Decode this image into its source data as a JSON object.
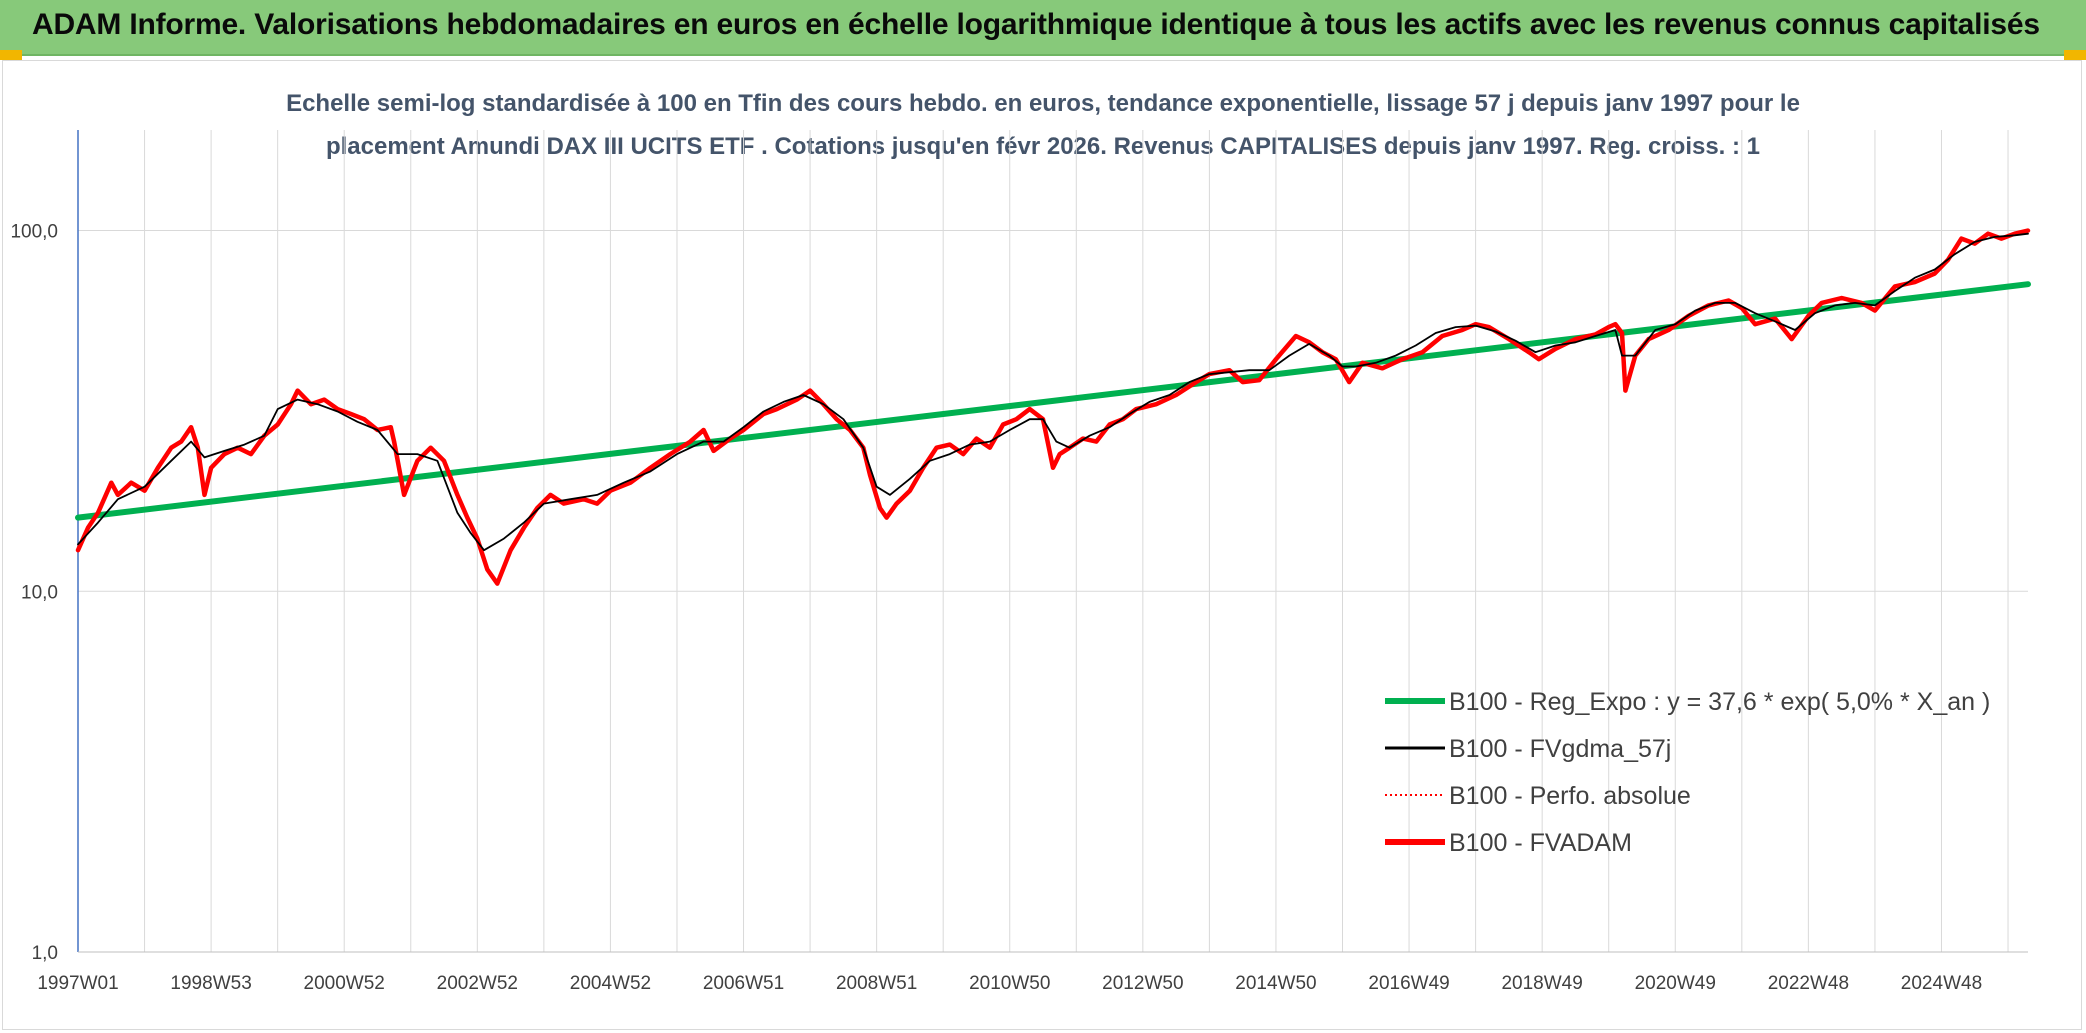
{
  "header": {
    "title": "ADAM Informe. Valorisations hebdomadaires en euros en échelle logarithmique identique à tous les actifs avec les revenus connus capitalisés",
    "background": "#87c97a"
  },
  "chart_data": {
    "type": "line",
    "title": "",
    "subtitle_lines": [
      "Echelle semi-log standardisée à 100 en Tfin des cours hebdo. en euros, tendance exponentielle, lissage 57 j depuis janv 1997 pour le",
      "placement Amundi DAX III UCITS ETF . Cotations jusqu'en févr 2026. Revenus CAPITALISES depuis janv 1997. Reg. croiss. : 1"
    ],
    "xlabel": "",
    "ylabel": "",
    "y_scale": "log",
    "ylim": [
      1,
      100
    ],
    "y_max_shown": 190,
    "x_range_years": [
      1997.0,
      2026.3
    ],
    "y_ticks": [
      {
        "value": 1,
        "label": "1,0"
      },
      {
        "value": 10,
        "label": "10,0"
      },
      {
        "value": 100,
        "label": "100,0"
      }
    ],
    "x_ticks": [
      {
        "year": 1997.0,
        "label": "1997W01"
      },
      {
        "year": 1998.0
      },
      {
        "year": 1999.0,
        "label": "1998W53"
      },
      {
        "year": 2000.0
      },
      {
        "year": 2001.0,
        "label": "2000W52"
      },
      {
        "year": 2002.0
      },
      {
        "year": 2003.0,
        "label": "2002W52"
      },
      {
        "year": 2004.0
      },
      {
        "year": 2005.0,
        "label": "2004W52"
      },
      {
        "year": 2006.0
      },
      {
        "year": 2007.0,
        "label": "2006W51"
      },
      {
        "year": 2008.0
      },
      {
        "year": 2009.0,
        "label": "2008W51"
      },
      {
        "year": 2010.0
      },
      {
        "year": 2011.0,
        "label": "2010W50"
      },
      {
        "year": 2012.0
      },
      {
        "year": 2013.0,
        "label": "2012W50"
      },
      {
        "year": 2014.0
      },
      {
        "year": 2015.0,
        "label": "2014W50"
      },
      {
        "year": 2016.0
      },
      {
        "year": 2017.0,
        "label": "2016W49"
      },
      {
        "year": 2018.0
      },
      {
        "year": 2019.0,
        "label": "2018W49"
      },
      {
        "year": 2020.0
      },
      {
        "year": 2021.0,
        "label": "2020W49"
      },
      {
        "year": 2022.0
      },
      {
        "year": 2023.0,
        "label": "2022W48"
      },
      {
        "year": 2024.0
      },
      {
        "year": 2025.0,
        "label": "2024W48"
      },
      {
        "year": 2026.0
      }
    ],
    "grid": true,
    "legend_position": "bottom-right",
    "series": [
      {
        "name": "B100 - Reg_Expo : y = 37,6 * exp( 5,0% *  X_an )",
        "color": "#00b050",
        "style": "solid-thick",
        "x": [
          1997.0,
          2026.3
        ],
        "y": [
          16.0,
          71.0
        ]
      },
      {
        "name": "B100 - FVgdma_57j",
        "color": "#000000",
        "style": "solid-thin",
        "x": [
          1997.0,
          1997.3,
          1997.6,
          1998.0,
          1998.4,
          1998.7,
          1998.9,
          1999.2,
          1999.5,
          1999.8,
          2000.0,
          2000.3,
          2000.6,
          2000.9,
          2001.2,
          2001.5,
          2001.8,
          2002.1,
          2002.4,
          2002.7,
          2002.9,
          2003.1,
          2003.4,
          2003.7,
          2004.0,
          2004.4,
          2004.8,
          2005.2,
          2005.6,
          2006.0,
          2006.4,
          2006.7,
          2007.0,
          2007.3,
          2007.6,
          2007.9,
          2008.2,
          2008.5,
          2008.8,
          2009.0,
          2009.2,
          2009.5,
          2009.8,
          2010.1,
          2010.4,
          2010.7,
          2011.0,
          2011.3,
          2011.5,
          2011.7,
          2011.9,
          2012.2,
          2012.5,
          2012.8,
          2013.1,
          2013.4,
          2013.7,
          2014.0,
          2014.3,
          2014.6,
          2014.9,
          2015.2,
          2015.5,
          2015.8,
          2016.0,
          2016.2,
          2016.5,
          2016.8,
          2017.1,
          2017.4,
          2017.7,
          2018.0,
          2018.3,
          2018.6,
          2018.9,
          2019.2,
          2019.5,
          2019.8,
          2020.1,
          2020.2,
          2020.4,
          2020.7,
          2021.0,
          2021.3,
          2021.6,
          2021.9,
          2022.2,
          2022.5,
          2022.8,
          2023.1,
          2023.4,
          2023.7,
          2024.0,
          2024.3,
          2024.6,
          2024.9,
          2025.2,
          2025.5,
          2025.8,
          2026.1,
          2026.3
        ],
        "y": [
          13.5,
          15.5,
          18.0,
          19.5,
          23.0,
          26.0,
          23.5,
          24.5,
          25.5,
          27.0,
          32.0,
          34.0,
          33.0,
          31.5,
          29.5,
          28.0,
          24.0,
          24.0,
          23.0,
          16.5,
          14.5,
          13.0,
          14.0,
          15.5,
          17.5,
          18.0,
          18.5,
          20.0,
          21.5,
          24.0,
          26.0,
          26.0,
          28.5,
          31.5,
          33.5,
          35.0,
          33.0,
          30.0,
          25.0,
          19.5,
          18.5,
          20.5,
          23.0,
          24.0,
          25.5,
          26.0,
          28.0,
          30.0,
          30.0,
          26.0,
          25.0,
          27.0,
          28.5,
          31.0,
          33.5,
          35.0,
          38.0,
          40.0,
          40.5,
          41.0,
          41.0,
          45.0,
          48.5,
          45.0,
          42.0,
          42.0,
          43.0,
          45.0,
          48.0,
          52.0,
          54.0,
          54.5,
          52.5,
          49.5,
          46.0,
          48.0,
          49.0,
          51.0,
          53.0,
          45.0,
          45.0,
          53.0,
          55.0,
          60.0,
          63.0,
          63.0,
          59.0,
          56.0,
          53.0,
          59.0,
          62.0,
          63.0,
          62.0,
          68.0,
          74.0,
          78.0,
          86.0,
          93.0,
          96.0,
          97.0,
          98.0
        ]
      },
      {
        "name": "B100 - Perfo. absolue",
        "color": "#ff0000",
        "style": "dotted",
        "x": [],
        "y": []
      },
      {
        "name": "B100 - FVADAM",
        "color": "#ff0000",
        "style": "solid-thick",
        "x": [
          1997.0,
          1997.15,
          1997.3,
          1997.5,
          1997.6,
          1997.8,
          1998.0,
          1998.2,
          1998.4,
          1998.55,
          1998.7,
          1998.8,
          1998.9,
          1999.0,
          1999.2,
          1999.4,
          1999.6,
          1999.8,
          2000.0,
          2000.2,
          2000.3,
          2000.5,
          2000.7,
          2000.9,
          2001.1,
          2001.3,
          2001.5,
          2001.7,
          2001.75,
          2001.9,
          2002.1,
          2002.3,
          2002.5,
          2002.7,
          2002.85,
          2003.0,
          2003.15,
          2003.3,
          2003.5,
          2003.7,
          2003.9,
          2004.1,
          2004.3,
          2004.6,
          2004.8,
          2005.0,
          2005.3,
          2005.6,
          2005.9,
          2006.2,
          2006.4,
          2006.55,
          2006.8,
          2007.0,
          2007.3,
          2007.5,
          2007.8,
          2008.0,
          2008.2,
          2008.4,
          2008.6,
          2008.8,
          2008.9,
          2009.05,
          2009.15,
          2009.3,
          2009.5,
          2009.7,
          2009.9,
          2010.1,
          2010.3,
          2010.5,
          2010.7,
          2010.9,
          2011.1,
          2011.3,
          2011.5,
          2011.65,
          2011.75,
          2011.9,
          2012.1,
          2012.3,
          2012.5,
          2012.7,
          2012.9,
          2013.2,
          2013.5,
          2013.8,
          2014.0,
          2014.3,
          2014.5,
          2014.75,
          2015.0,
          2015.3,
          2015.5,
          2015.7,
          2015.9,
          2016.1,
          2016.3,
          2016.6,
          2016.9,
          2017.2,
          2017.5,
          2017.8,
          2018.0,
          2018.2,
          2018.5,
          2018.8,
          2018.95,
          2019.2,
          2019.5,
          2019.8,
          2020.0,
          2020.1,
          2020.2,
          2020.25,
          2020.4,
          2020.6,
          2020.9,
          2021.2,
          2021.5,
          2021.8,
          2022.0,
          2022.2,
          2022.5,
          2022.75,
          2023.0,
          2023.2,
          2023.5,
          2023.8,
          2024.0,
          2024.3,
          2024.6,
          2024.9,
          2025.1,
          2025.3,
          2025.5,
          2025.7,
          2025.9,
          2026.1,
          2026.3
        ],
        "y": [
          13.0,
          15.0,
          16.5,
          20.0,
          18.5,
          20.0,
          19.0,
          22.0,
          25.0,
          26.0,
          28.5,
          25.0,
          18.5,
          22.0,
          24.0,
          25.0,
          24.0,
          27.0,
          29.0,
          33.0,
          36.0,
          33.0,
          34.0,
          32.0,
          31.0,
          30.0,
          28.0,
          28.5,
          26.0,
          18.5,
          23.0,
          25.0,
          23.0,
          18.5,
          16.0,
          14.0,
          11.5,
          10.5,
          13.0,
          15.0,
          17.0,
          18.5,
          17.5,
          18.0,
          17.5,
          19.0,
          20.0,
          22.0,
          24.0,
          26.0,
          28.0,
          24.5,
          26.5,
          28.0,
          31.0,
          32.0,
          34.0,
          36.0,
          33.0,
          30.0,
          28.0,
          25.0,
          21.0,
          17.0,
          16.0,
          17.5,
          19.0,
          22.0,
          25.0,
          25.5,
          24.0,
          26.5,
          25.0,
          29.0,
          30.0,
          32.0,
          30.0,
          22.0,
          24.0,
          25.0,
          26.5,
          26.0,
          29.0,
          30.0,
          32.0,
          33.0,
          35.0,
          38.0,
          40.0,
          41.0,
          38.0,
          38.5,
          44.0,
          51.0,
          49.0,
          46.0,
          44.0,
          38.0,
          43.0,
          41.5,
          44.0,
          46.0,
          51.0,
          53.0,
          55.0,
          54.0,
          50.0,
          46.0,
          44.0,
          47.0,
          50.0,
          51.5,
          54.0,
          55.0,
          52.0,
          36.0,
          45.0,
          50.0,
          53.0,
          58.0,
          62.0,
          64.0,
          61.0,
          55.0,
          57.0,
          50.0,
          58.0,
          63.0,
          65.0,
          63.0,
          60.0,
          70.0,
          72.0,
          76.0,
          83.0,
          95.0,
          92.0,
          98.0,
          95.0,
          98.0,
          100.0
        ]
      }
    ]
  }
}
